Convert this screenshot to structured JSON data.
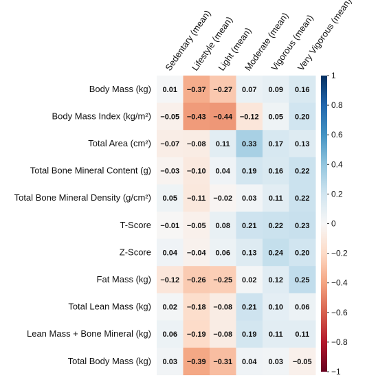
{
  "chart_data": {
    "type": "heatmap",
    "title": "",
    "xlabel": "",
    "ylabel": "",
    "columns": [
      "Sedentary (mean)",
      "Lifestyle (mean)",
      "Light (mean)",
      "Moderate (mean)",
      "Vigorous (mean)",
      "Very Vigorous (mean)"
    ],
    "rows": [
      "Body Mass (kg)",
      "Body Mass Index (kg/m²)",
      "Total Area (cm²)",
      "Total Bone Mineral Content (g)",
      "Total Bone Mineral Density (g/cm²)",
      "T-Score",
      "Z-Score",
      "Fat Mass (kg)",
      "Total Lean Mass (kg)",
      "Lean Mass + Bone Mineral (kg)",
      "Total Body Mass (kg)"
    ],
    "values": [
      [
        0.01,
        -0.37,
        -0.27,
        0.07,
        0.09,
        0.16
      ],
      [
        -0.05,
        -0.43,
        -0.44,
        -0.12,
        0.05,
        0.2
      ],
      [
        -0.07,
        -0.08,
        0.11,
        0.33,
        0.17,
        0.13
      ],
      [
        -0.03,
        -0.1,
        0.04,
        0.19,
        0.16,
        0.22
      ],
      [
        0.05,
        -0.11,
        -0.02,
        0.03,
        0.11,
        0.22
      ],
      [
        -0.01,
        -0.05,
        0.08,
        0.21,
        0.22,
        0.23
      ],
      [
        0.04,
        -0.04,
        0.06,
        0.13,
        0.24,
        0.2
      ],
      [
        -0.12,
        -0.26,
        -0.25,
        0.02,
        0.12,
        0.25
      ],
      [
        0.02,
        -0.18,
        -0.08,
        0.21,
        0.1,
        0.06
      ],
      [
        0.06,
        -0.19,
        -0.08,
        0.19,
        0.11,
        0.11
      ],
      [
        0.03,
        -0.39,
        -0.31,
        0.04,
        0.03,
        -0.05
      ]
    ],
    "value_labels": [
      [
        "0.01",
        "−0.37",
        "−0.27",
        "0.07",
        "0.09",
        "0.16"
      ],
      [
        "−0.05",
        "−0.43",
        "−0.44",
        "−0.12",
        "0.05",
        "0.20"
      ],
      [
        "−0.07",
        "−0.08",
        "0.11",
        "0.33",
        "0.17",
        "0.13"
      ],
      [
        "−0.03",
        "−0.10",
        "0.04",
        "0.19",
        "0.16",
        "0.22"
      ],
      [
        "0.05",
        "−0.11",
        "−0.02",
        "0.03",
        "0.11",
        "0.22"
      ],
      [
        "−0.01",
        "−0.05",
        "0.08",
        "0.21",
        "0.22",
        "0.23"
      ],
      [
        "0.04",
        "−0.04",
        "0.06",
        "0.13",
        "0.24",
        "0.20"
      ],
      [
        "−0.12",
        "−0.26",
        "−0.25",
        "0.02",
        "0.12",
        "0.25"
      ],
      [
        "0.02",
        "−0.18",
        "−0.08",
        "0.21",
        "0.10",
        "0.06"
      ],
      [
        "0.06",
        "−0.19",
        "−0.08",
        "0.19",
        "0.11",
        "0.11"
      ],
      [
        "0.03",
        "−0.39",
        "−0.31",
        "0.04",
        "0.03",
        "−0.05"
      ]
    ],
    "color_scale": {
      "min": -1,
      "max": 1,
      "colormap": "RdBu",
      "colors": [
        "#67001f",
        "#b2182b",
        "#d6604d",
        "#f4a582",
        "#fddbc7",
        "#f7f7f7",
        "#d1e5f0",
        "#92c5de",
        "#4393c3",
        "#2166ac",
        "#053061"
      ]
    },
    "colorbar": {
      "ticks": [
        1,
        0.8,
        0.6,
        0.4,
        0.2,
        0,
        -0.2,
        -0.4,
        -0.6,
        -0.8,
        -1
      ],
      "tick_labels": [
        "1",
        "0.8",
        "0.6",
        "0.4",
        "0.2",
        "0",
        "−0.2",
        "−0.4",
        "−0.6",
        "−0.8",
        "−1"
      ],
      "placement": "right"
    }
  }
}
